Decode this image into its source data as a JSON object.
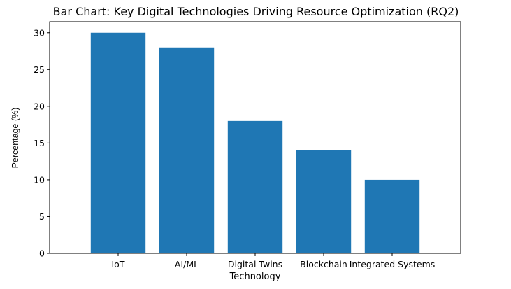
{
  "chart_data": {
    "type": "bar",
    "title": "Bar Chart: Key Digital Technologies Driving Resource Optimization (RQ2)",
    "xlabel": "Technology",
    "ylabel": "Percentage (%)",
    "categories": [
      "IoT",
      "AI/ML",
      "Digital Twins",
      "Blockchain",
      "Integrated Systems"
    ],
    "values": [
      30,
      28,
      18,
      14,
      10
    ],
    "ylim": [
      0,
      31.5
    ],
    "yticks": [
      0,
      5,
      10,
      15,
      20,
      25,
      30
    ],
    "grid": false,
    "bar_color": "#1f77b4"
  }
}
